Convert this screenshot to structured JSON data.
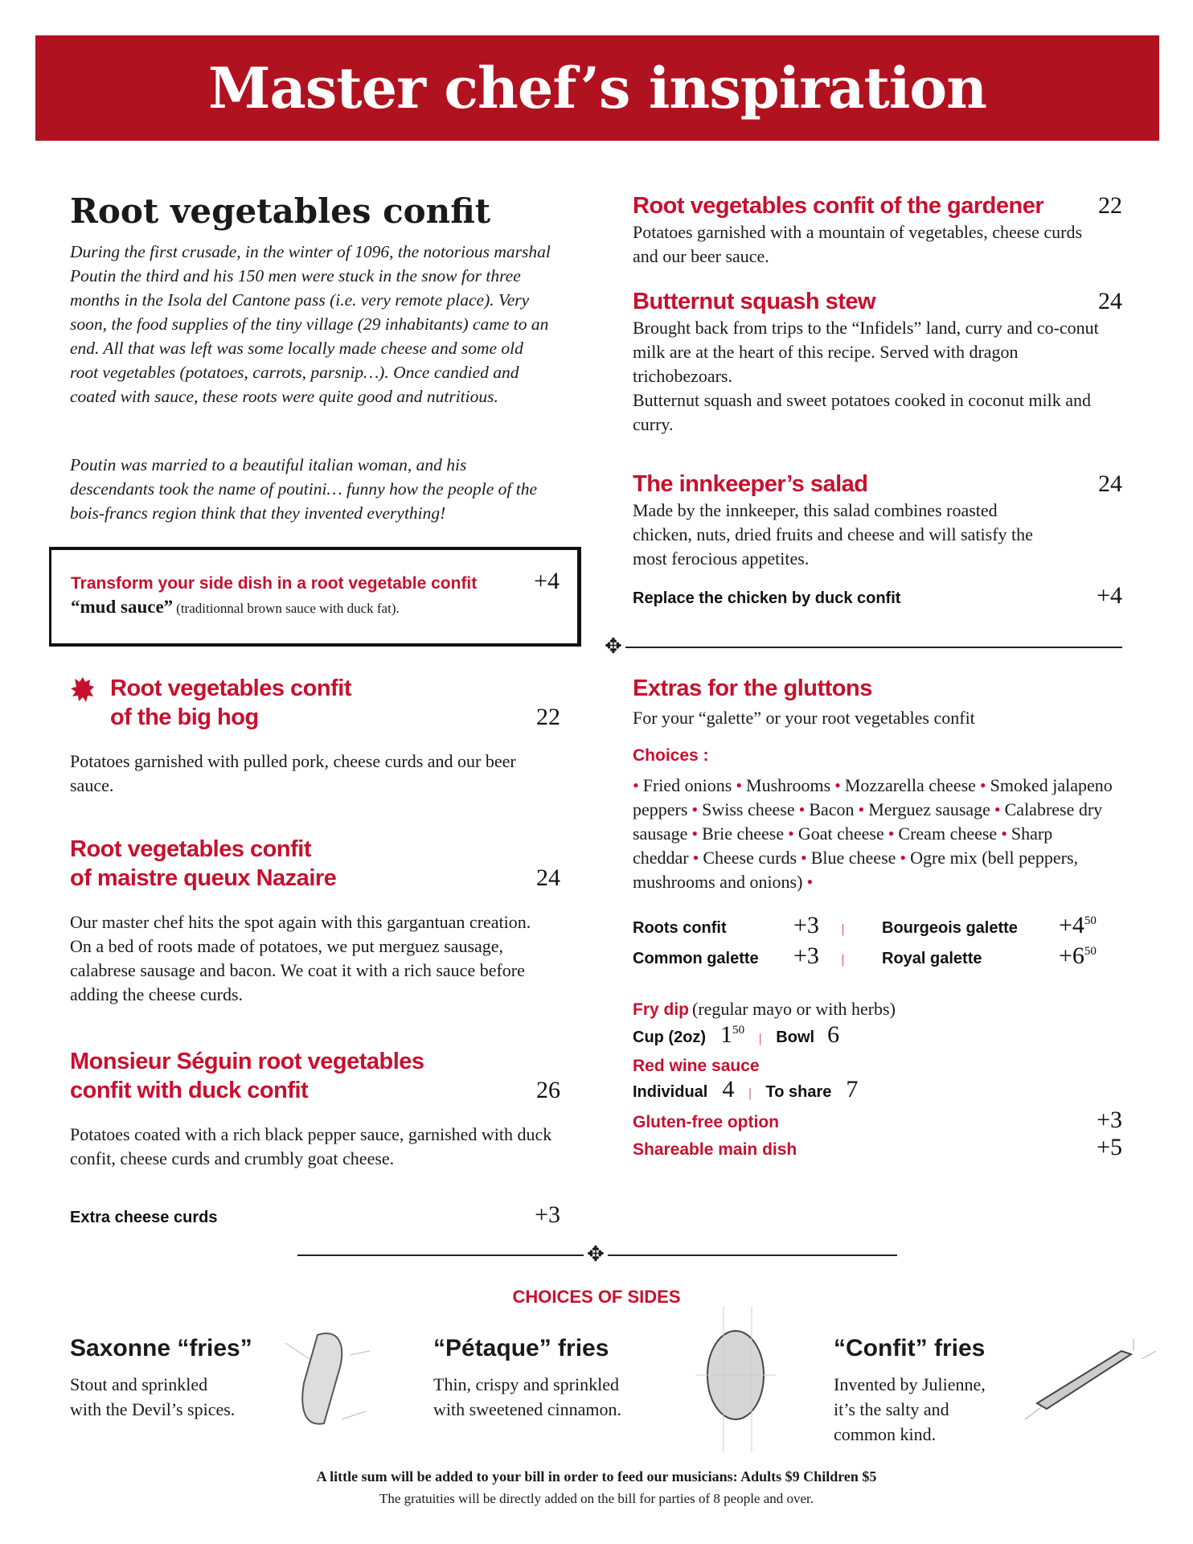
{
  "header": {
    "title": "Master chef’s inspiration"
  },
  "intro": {
    "title": "Root vegetables confit",
    "paragraph1": "During the first crusade, in the winter of 1096, the notorious marshal Poutin the third and his 150 men were stuck in the snow for three months in the Isola del Cantone pass (i.e. very remote place). Very soon, the food supplies of the tiny village (29 inhabitants) came to an end. All that was left was some locally made cheese and some old root vegetables (potatoes, carrots, parsnip…). Once candied and coated with sauce, these roots were quite good and nutritious.",
    "paragraph2": "Poutin was married to a beautiful italian woman, and his descendants took the name of poutini… funny how the people of the bois-francs region think that they invented everything!"
  },
  "transform_box": {
    "title": "Transform your side dish in a root vegetable confit",
    "price": "+4",
    "sauce": "“mud sauce”",
    "sauce_desc": "(traditionnal brown sauce with duck fat)."
  },
  "left_dishes": [
    {
      "title1": "Root vegetables confit",
      "title2": "of the big hog",
      "price": "22",
      "desc": "Potatoes garnished with pulled pork, cheese curds and our beer sauce.",
      "icon": "dragon-crest-icon"
    },
    {
      "title1": "Root vegetables confit",
      "title2": "of maistre queux Nazaire",
      "price": "24",
      "desc": "Our master chef hits the spot again with this gargantuan creation. On a bed of roots made of potatoes, we put merguez sausage, calabrese sausage and bacon. We coat it with a rich sauce before adding the cheese curds."
    },
    {
      "title1": "Monsieur Séguin root vegetables",
      "title2": "confit with duck confit",
      "price": "26",
      "desc": "Potatoes coated with a rich black pepper sauce, garnished with duck confit, cheese curds and crumbly goat cheese.",
      "extra_label": "Extra cheese curds",
      "extra_price": "+3"
    }
  ],
  "right_dishes": [
    {
      "title": "Root vegetables confit of the gardener",
      "price": "22",
      "desc": "Potatoes garnished with a mountain of vegetables, cheese curds and our beer sauce."
    },
    {
      "title": "Butternut squash stew",
      "price": "24",
      "desc": "Brought back from trips to the “Infidels” land, curry and co-conut milk are at the heart of this recipe. Served with dragon trichobezoars.",
      "desc2": "Butternut squash and sweet potatoes cooked in coconut milk and curry."
    },
    {
      "title": "The innkeeper’s salad",
      "price": "24",
      "desc": "Made by the innkeeper, this salad combines roasted chicken, nuts, dried fruits and cheese and will satisfy the most ferocious appetites.",
      "extra_label": "Replace the chicken by duck confit",
      "extra_price": "+4"
    }
  ],
  "extras": {
    "title": "Extras for the gluttons",
    "subtitle": "For your “galette” or your root vegetables confit",
    "choices_label": "Choices :",
    "choices": [
      "Fried onions",
      "Mushrooms",
      "Mozzarella cheese",
      "Smoked jalapeno peppers",
      "Swiss cheese",
      "Bacon",
      "Merguez sausage",
      "Calabrese dry sausage",
      "Brie cheese",
      "Goat cheese",
      "Cream cheese",
      "Sharp cheddar",
      "Cheese curds",
      "Blue cheese",
      "Ogre mix (bell peppers, mushrooms and onions)"
    ],
    "prices": [
      {
        "label": "Roots confit",
        "price": "+3",
        "cents": ""
      },
      {
        "label": "Bourgeois galette",
        "price": "+4",
        "cents": "50"
      },
      {
        "label": "Common galette",
        "price": "+3",
        "cents": ""
      },
      {
        "label": "Royal galette",
        "price": "+6",
        "cents": "50"
      }
    ],
    "fry_dip": {
      "title": "Fry dip",
      "note": "(regular mayo or with herbs)",
      "cup_label": "Cup (2oz)",
      "cup_price": "1",
      "cup_cents": "50",
      "bowl_label": "Bowl",
      "bowl_price": "6"
    },
    "red_wine": {
      "title": "Red wine sauce",
      "ind_label": "Individual",
      "ind_price": "4",
      "share_label": "To share",
      "share_price": "7"
    },
    "gluten": {
      "label": "Gluten-free option",
      "price": "+3"
    },
    "shareable": {
      "label": "Shareable main dish",
      "price": "+5"
    }
  },
  "sides": {
    "title": "CHOICES OF SIDES",
    "items": [
      {
        "name": "Saxonne “fries”",
        "desc1": "Stout and sprinkled",
        "desc2": "with the Devil’s spices.",
        "desc3": ""
      },
      {
        "name": "“Pétaque” fries",
        "desc1": "Thin, crispy and sprinkled",
        "desc2": "with sweetened cinnamon.",
        "desc3": ""
      },
      {
        "name": "“Confit” fries",
        "desc1": "Invented by Julienne,",
        "desc2": "it’s the salty and",
        "desc3": "common kind."
      }
    ]
  },
  "footer": {
    "line1": "A little sum will be added to your bill in order to feed our musicians:  Adults $9   Children $5",
    "line2": "The gratuities will be directly added on the bill for parties of 8 people and over."
  },
  "colors": {
    "accent": "#c8102e",
    "banner": "#b1121f"
  }
}
